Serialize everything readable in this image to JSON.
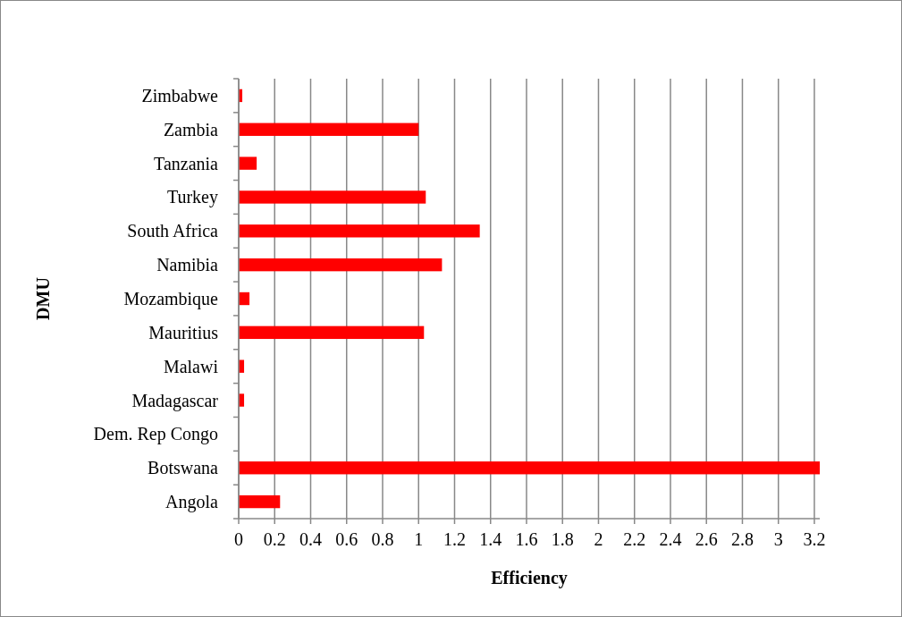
{
  "chart_data": {
    "type": "bar",
    "orientation": "horizontal",
    "xlabel": "Efficiency",
    "ylabel": "DMU",
    "categories": [
      "Zimbabwe",
      "Zambia",
      "Tanzania",
      "Turkey",
      "South Africa",
      "Namibia",
      "Mozambique",
      "Mauritius",
      "Malawi",
      "Madagascar",
      "Dem. Rep Congo",
      "Botswana",
      "Angola"
    ],
    "values": [
      0.02,
      1.0,
      0.1,
      1.04,
      1.34,
      1.13,
      0.06,
      1.03,
      0.03,
      0.03,
      0,
      3.23,
      0.23
    ],
    "color": "#ff0000",
    "xlim": [
      0,
      3.23
    ],
    "xticks": [
      0,
      0.2,
      0.4,
      0.6,
      0.8,
      1,
      1.2,
      1.4,
      1.6,
      1.8,
      2,
      2.2,
      2.4,
      2.6,
      2.8,
      3,
      3.2
    ],
    "grid": "x"
  }
}
